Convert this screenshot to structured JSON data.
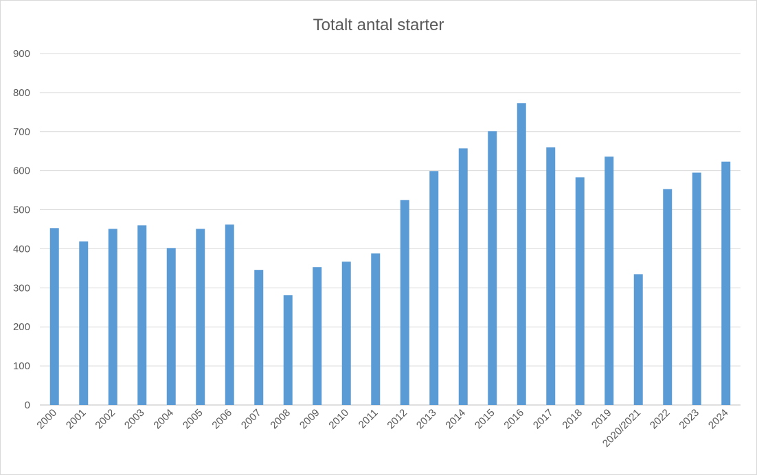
{
  "chart_data": {
    "type": "bar",
    "title": "Totalt antal starter",
    "xlabel": "",
    "ylabel": "",
    "ylim": [
      0,
      900
    ],
    "yticks": [
      0,
      100,
      200,
      300,
      400,
      500,
      600,
      700,
      800,
      900
    ],
    "grid": true,
    "legend": "none",
    "categories": [
      "2000",
      "2001",
      "2002",
      "2003",
      "2004",
      "2005",
      "2006",
      "2007",
      "2008",
      "2009",
      "2010",
      "2011",
      "2012",
      "2013",
      "2014",
      "2015",
      "2016",
      "2017",
      "2018",
      "2019",
      "2020/2021",
      "2022",
      "2023",
      "2024"
    ],
    "values": [
      453,
      419,
      451,
      460,
      402,
      451,
      462,
      346,
      281,
      353,
      367,
      388,
      525,
      599,
      657,
      701,
      773,
      660,
      583,
      636,
      335,
      553,
      595,
      623
    ],
    "bar_color": "#5b9bd5",
    "grid_color": "#d9d9d9",
    "text_color": "#595959"
  }
}
